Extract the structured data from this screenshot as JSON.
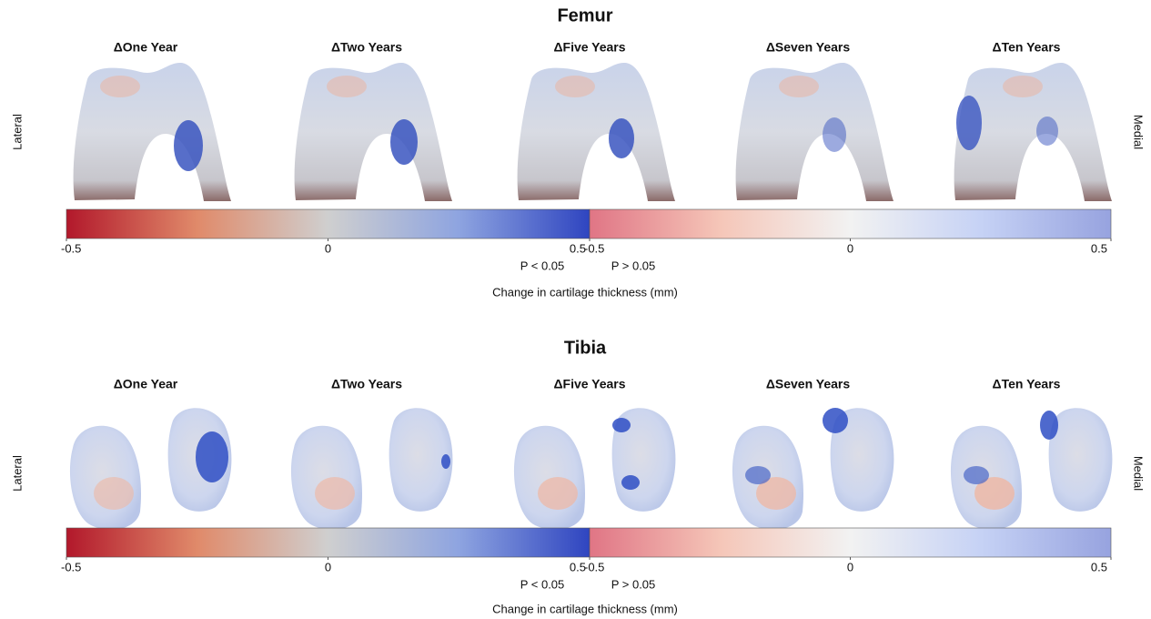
{
  "sections": [
    {
      "title": "Femur",
      "columns": [
        "ΔOne Year",
        "ΔTwo Years",
        "ΔFive Years",
        "ΔSeven Years",
        "ΔTen Years"
      ],
      "side_labels": [
        "Lateral",
        "Medial"
      ],
      "colorbar": {
        "segments": [
          {
            "lim": [
              -0.5,
              0.5
            ],
            "ticks": [
              -0.5,
              0,
              0.5
            ],
            "label": "P < 0.05"
          },
          {
            "lim": [
              -0.5,
              0.5
            ],
            "ticks": [
              -0.5,
              0,
              0.5
            ],
            "label": "P > 0.05"
          }
        ],
        "label": "Change in cartilage thickness (mm)"
      }
    },
    {
      "title": "Tibia",
      "columns": [
        "ΔOne Year",
        "ΔTwo Years",
        "ΔFive Years",
        "ΔSeven Years",
        "ΔTen Years"
      ],
      "side_labels": [
        "Lateral",
        "Medial"
      ],
      "colorbar": {
        "segments": [
          {
            "lim": [
              -0.5,
              0.5
            ],
            "ticks": [
              -0.5,
              0,
              0.5
            ],
            "label": "P < 0.05"
          },
          {
            "lim": [
              -0.5,
              0.5
            ],
            "ticks": [
              -0.5,
              0,
              0.5
            ],
            "label": "P > 0.05"
          }
        ],
        "label": "Change in cartilage thickness (mm)"
      }
    }
  ]
}
